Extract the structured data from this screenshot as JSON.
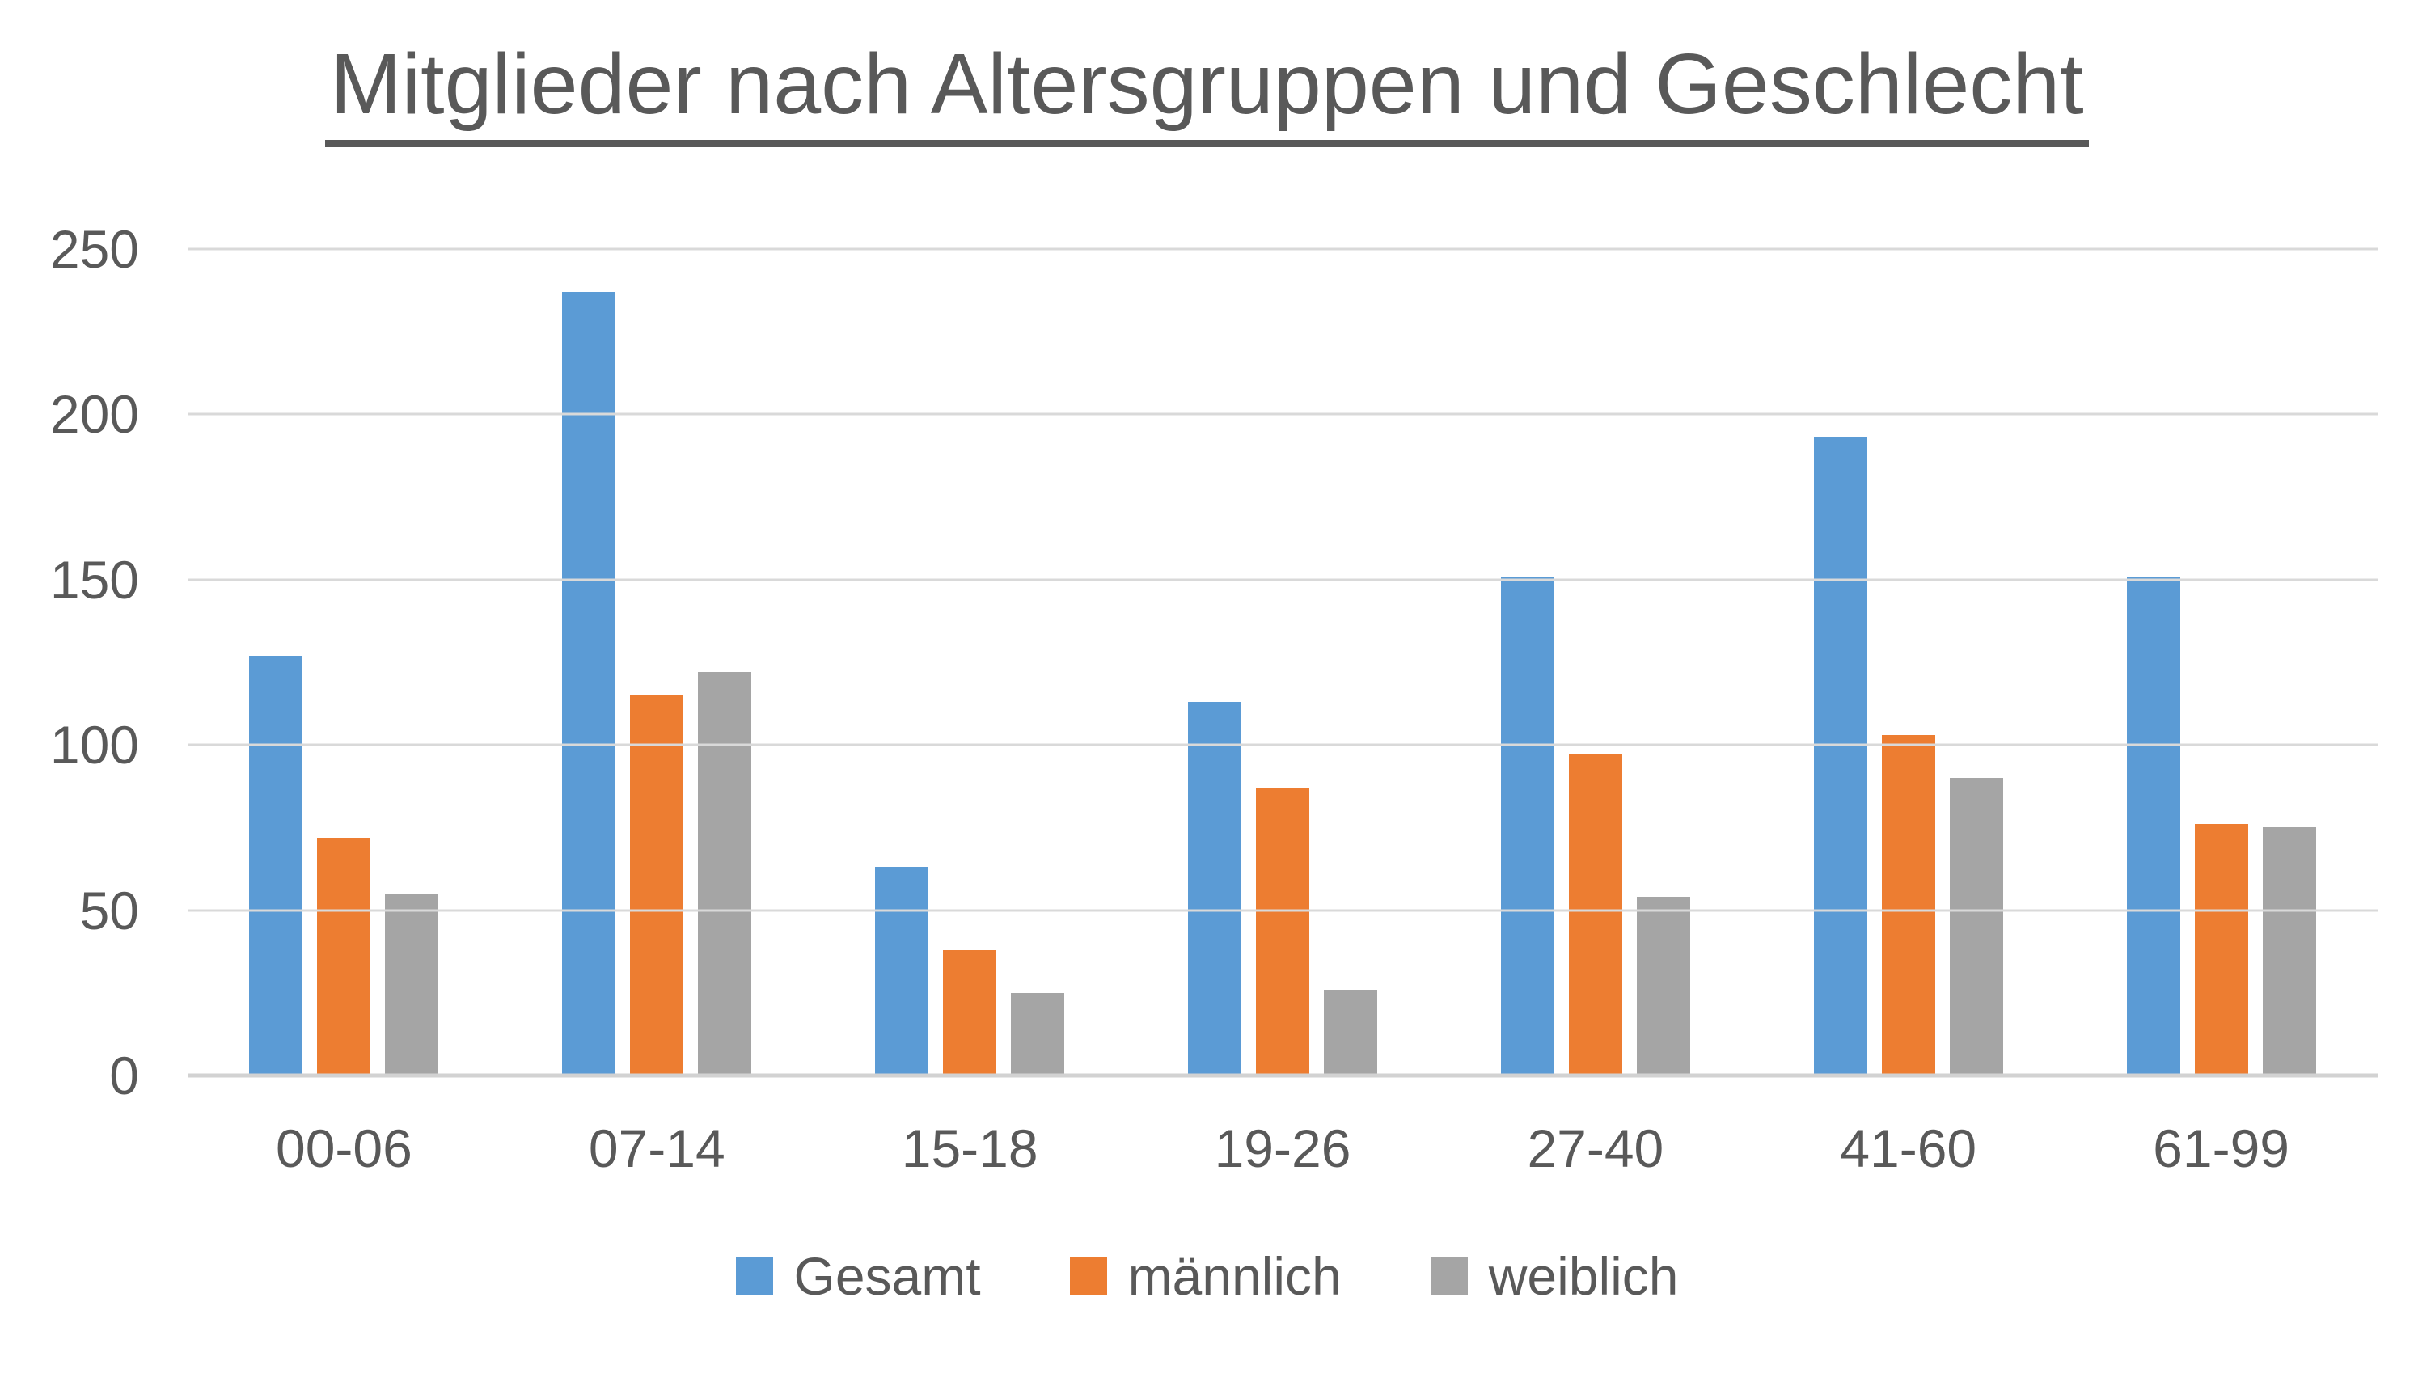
{
  "title": "Mitglieder nach Altersgruppen und Geschlecht",
  "colors": {
    "series_gesamt": "#5B9BD5",
    "series_maennlich": "#ED7D31",
    "series_weiblich": "#A5A5A5",
    "text": "#595959",
    "gridline": "#D9D9D9",
    "background": "#FFFFFF"
  },
  "chart_data": {
    "type": "bar",
    "title": "Mitglieder nach Altersgruppen und Geschlecht",
    "categories": [
      "00-06",
      "07-14",
      "15-18",
      "19-26",
      "27-40",
      "41-60",
      "61-99"
    ],
    "series": [
      {
        "name": "Gesamt",
        "color": "#5B9BD5",
        "values": [
          127,
          237,
          63,
          113,
          151,
          193,
          151
        ]
      },
      {
        "name": "männlich",
        "color": "#ED7D31",
        "values": [
          72,
          115,
          38,
          87,
          97,
          103,
          76
        ]
      },
      {
        "name": "weiblich",
        "color": "#A5A5A5",
        "values": [
          55,
          122,
          25,
          26,
          54,
          90,
          75
        ]
      }
    ],
    "xlabel": "",
    "ylabel": "",
    "ylim": [
      0,
      250
    ],
    "yticks": [
      0,
      50,
      100,
      150,
      200,
      250
    ],
    "grid": true,
    "legend_position": "bottom",
    "title_underlined": true
  }
}
